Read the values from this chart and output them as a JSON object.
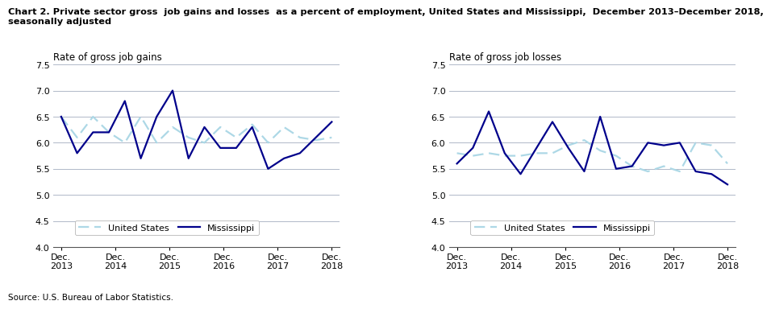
{
  "title_line1": "Chart 2. Private sector gross  job gains and losses  as a percent of employment, United States and Mississippi,  December 2013–December 2018,",
  "title_line2": "seasonally adjusted",
  "source": "Source: U.S. Bureau of Labor Statistics.",
  "left_ylabel": "Rate of gross job gains",
  "right_ylabel": "Rate of gross job losses",
  "x_tick_labels": [
    "Dec.\n2013",
    "Dec.\n2014",
    "Dec.\n2015",
    "Dec.\n2016",
    "Dec.\n2017",
    "Dec.\n2018"
  ],
  "x_tick_positions": [
    0,
    2,
    4,
    6,
    8,
    10
  ],
  "ylim": [
    4.0,
    7.5
  ],
  "yticks": [
    4.0,
    4.5,
    5.0,
    5.5,
    6.0,
    6.5,
    7.0,
    7.5
  ],
  "n_points": 18,
  "gains_us": [
    6.5,
    6.1,
    6.5,
    6.2,
    6.0,
    6.5,
    6.0,
    6.3,
    6.1,
    6.0,
    6.3,
    6.1,
    6.35,
    6.0,
    6.3,
    6.1,
    6.05,
    6.1
  ],
  "gains_ms": [
    6.5,
    5.8,
    6.2,
    6.2,
    6.8,
    5.7,
    6.5,
    7.0,
    5.7,
    6.3,
    5.9,
    5.9,
    6.3,
    5.5,
    5.7,
    5.8,
    6.1,
    6.4
  ],
  "losses_us": [
    5.8,
    5.75,
    5.8,
    5.75,
    5.75,
    5.8,
    5.8,
    5.95,
    6.05,
    5.85,
    5.75,
    5.55,
    5.45,
    5.55,
    5.45,
    6.0,
    5.95,
    5.6
  ],
  "losses_ms": [
    5.6,
    5.9,
    6.6,
    5.8,
    5.4,
    5.9,
    6.4,
    5.9,
    5.45,
    6.5,
    5.5,
    5.55,
    6.0,
    5.95,
    6.0,
    5.45,
    5.4,
    5.2
  ],
  "us_color": "#add8e6",
  "ms_color": "#00008B",
  "background_color": "#ffffff"
}
